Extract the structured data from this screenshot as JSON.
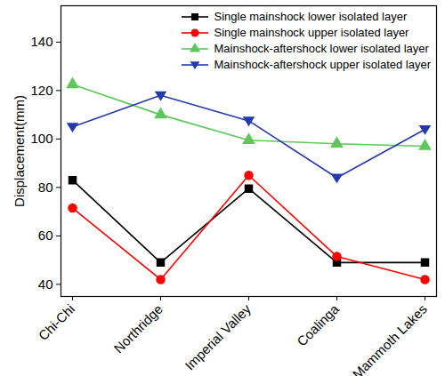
{
  "chart_data": {
    "type": "line",
    "y_label": "Displacement(mm)",
    "categories": [
      "Chi-Chi",
      "Northridge",
      "Imperial Valley",
      "Coalinga",
      "Mammoth Lakes"
    ],
    "series": [
      {
        "name": "Single mainshock lower isolated layer",
        "color": "#000000",
        "marker": "square",
        "values": [
          83,
          49,
          79.5,
          49,
          49
        ]
      },
      {
        "name": "Single mainshock upper isolated layer",
        "color": "#ff0000",
        "marker": "circle",
        "values": [
          71.5,
          42,
          85,
          51.5,
          42
        ]
      },
      {
        "name": "Mainshock-aftershock lower isolated layer",
        "color": "#5cc85c",
        "marker": "triangle",
        "values": [
          122.5,
          110,
          99.5,
          98,
          97
        ]
      },
      {
        "name": "Mainshock-aftershock upper isolated layer",
        "color": "#2439b0",
        "marker": "triangle-down",
        "values": [
          105,
          118,
          107.5,
          84,
          104
        ]
      }
    ],
    "ylim": [
      35,
      155
    ],
    "yticks": [
      40,
      60,
      80,
      100,
      120,
      140
    ],
    "grid": false,
    "legend": "top-right"
  }
}
